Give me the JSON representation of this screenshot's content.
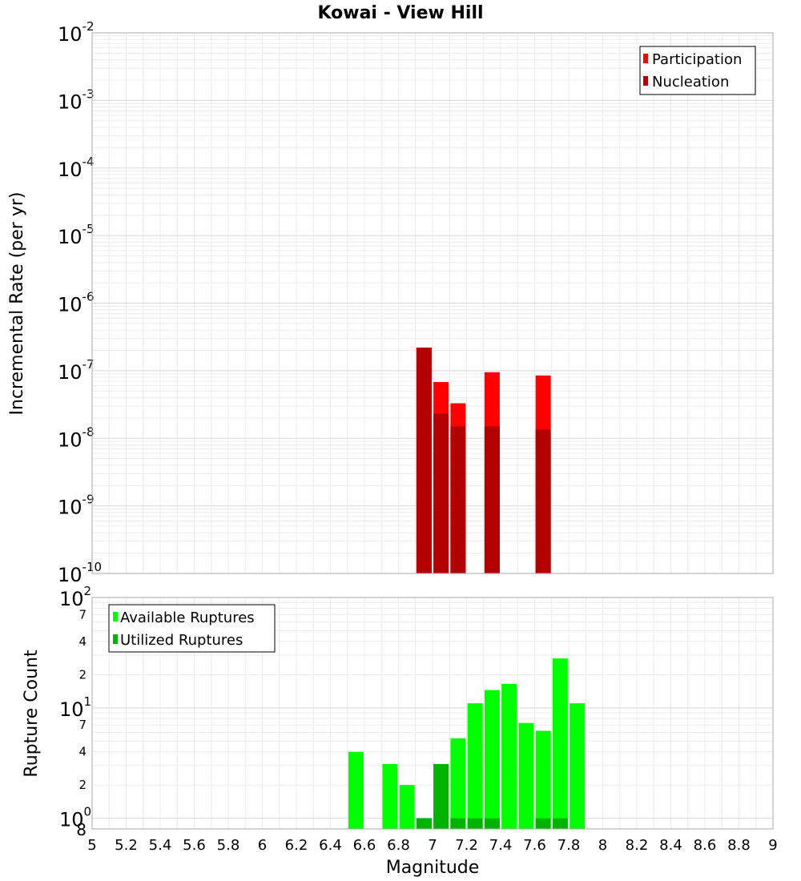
{
  "chart_data": [
    {
      "type": "bar",
      "title": "Kowai - View Hill",
      "xlabel": "Magnitude",
      "ylabel": "Incremental Rate (per yr)",
      "yscale": "log",
      "xlim": [
        5,
        9
      ],
      "ylim": [
        1e-10,
        0.01
      ],
      "y_tick_labels": [
        {
          "base": "10",
          "exp": "-10"
        },
        {
          "base": "10",
          "exp": "-9"
        },
        {
          "base": "10",
          "exp": "-8"
        },
        {
          "base": "10",
          "exp": "-7"
        },
        {
          "base": "10",
          "exp": "-6"
        },
        {
          "base": "10",
          "exp": "-5"
        },
        {
          "base": "10",
          "exp": "-4"
        },
        {
          "base": "10",
          "exp": "-3"
        },
        {
          "base": "10",
          "exp": "-2"
        }
      ],
      "legend": [
        {
          "label": "Participation",
          "color": "#ff0000"
        },
        {
          "label": "Nucleation",
          "color": "#b30000"
        }
      ],
      "series": [
        {
          "name": "Participation",
          "color": "#ff0000",
          "x": [
            6.95,
            7.05,
            7.15,
            7.35,
            7.65
          ],
          "values": [
            2.2e-07,
            6.8e-08,
            3.3e-08,
            9.5e-08,
            8.5e-08
          ]
        },
        {
          "name": "Nucleation",
          "color": "#b30000",
          "x": [
            6.95,
            7.05,
            7.15,
            7.35,
            7.65
          ],
          "values": [
            2.2e-07,
            2.3e-08,
            1.5e-08,
            1.5e-08,
            1.35e-08
          ]
        }
      ]
    },
    {
      "type": "bar",
      "xlabel": "Magnitude",
      "ylabel": "Rupture Count",
      "yscale": "log",
      "xlim": [
        5,
        9
      ],
      "ylim": [
        0.8,
        100
      ],
      "x_tick_labels": [
        "5",
        "5.2",
        "5.4",
        "5.6",
        "5.8",
        "6",
        "6.2",
        "6.4",
        "6.6",
        "6.8",
        "7",
        "7.2",
        "7.4",
        "7.6",
        "7.8",
        "8",
        "8.2",
        "8.4",
        "8.6",
        "8.8",
        "9"
      ],
      "y_tick_labels": [
        {
          "base": "10",
          "exp": "0"
        },
        {
          "base": "10",
          "exp": "1"
        },
        {
          "base": "10",
          "exp": "2"
        }
      ],
      "y_minor_labels": [
        "8",
        "2",
        "4",
        "7",
        "2",
        "4",
        "7"
      ],
      "legend": [
        {
          "label": "Available Ruptures",
          "color": "#00ff00"
        },
        {
          "label": "Utilized Ruptures",
          "color": "#00b300"
        }
      ],
      "series": [
        {
          "name": "Available Ruptures",
          "color": "#00ff00",
          "x": [
            6.55,
            6.75,
            6.85,
            6.95,
            7.05,
            7.15,
            7.25,
            7.35,
            7.45,
            7.55,
            7.65,
            7.75,
            7.85
          ],
          "values": [
            4,
            3.1,
            2,
            1,
            3.1,
            5.3,
            11,
            14.5,
            16.5,
            7.3,
            6.2,
            28,
            11
          ]
        },
        {
          "name": "Utilized Ruptures",
          "color": "#00b300",
          "x": [
            6.95,
            7.05,
            7.15,
            7.25,
            7.35,
            7.65,
            7.75
          ],
          "values": [
            1,
            3.1,
            1,
            1,
            1,
            1,
            1
          ]
        }
      ]
    }
  ]
}
